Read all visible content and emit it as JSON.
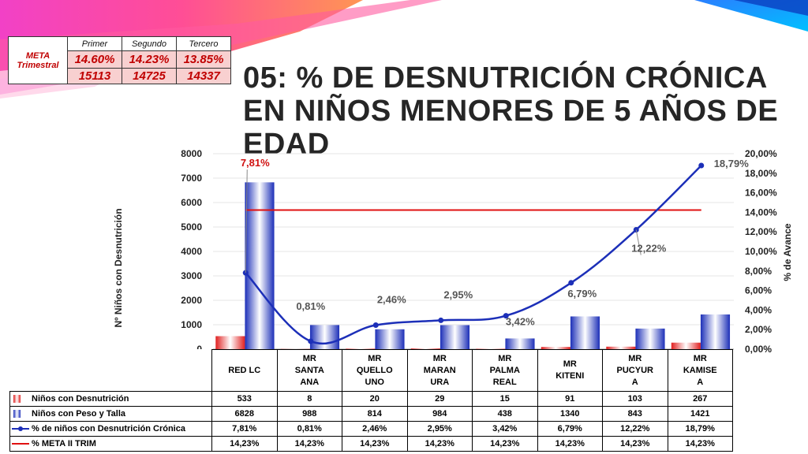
{
  "meta": {
    "label": "META\nTrimestral",
    "headers": [
      "Primer",
      "Segundo",
      "Tercero"
    ],
    "percentages": [
      "14.60%",
      "14.23%",
      "13.85%"
    ],
    "counts": [
      "15113",
      "14725",
      "14337"
    ]
  },
  "title": "05: % DE DESNUTRICIÓN CRÓNICA EN NIÑOS MENORES DE 5 AÑOS DE EDAD",
  "colors": {
    "red": "#e02020",
    "blue": "#1c2fb8",
    "meta": "#e01010",
    "title": "#262626"
  },
  "chart_data": {
    "type": "bar",
    "categories": [
      "RED LC",
      "MR\nSANTA\nANA",
      "MR\nQUELLO\nUNO",
      "MR\nMARAN\nURA",
      "MR\nPALMA\nREAL",
      "MR\nKITENI",
      "MR\nPUCYUR\nA",
      "MR\nKAMISE\nA"
    ],
    "ylabel": "Nº Niños con Desnutrición",
    "y2label": "% de Avance",
    "ylim": [
      0,
      8000
    ],
    "yticks": [
      "0",
      "1000",
      "2000",
      "3000",
      "4000",
      "5000",
      "6000",
      "7000",
      "8000"
    ],
    "y2lim": [
      0,
      20
    ],
    "y2ticks": [
      "0,00%",
      "2,00%",
      "4,00%",
      "6,00%",
      "8,00%",
      "10,00%",
      "12,00%",
      "14,00%",
      "16,00%",
      "18,00%",
      "20,00%"
    ],
    "series": [
      {
        "name": "Niños con Desnutrición",
        "kind": "bar",
        "values": [
          533,
          8,
          20,
          29,
          15,
          91,
          103,
          267
        ],
        "labels": [
          "533",
          "8",
          "20",
          "29",
          "15",
          "91",
          "103",
          "267"
        ]
      },
      {
        "name": "Niños con Peso y Talla",
        "kind": "bar",
        "values": [
          6828,
          988,
          814,
          984,
          438,
          1340,
          843,
          1421
        ],
        "labels": [
          "6828",
          "988",
          "814",
          "984",
          "438",
          "1340",
          "843",
          "1421"
        ]
      },
      {
        "name": "% de niños con Desnutrición Crónica",
        "kind": "line",
        "axis": "right",
        "values": [
          7.81,
          0.81,
          2.46,
          2.95,
          3.42,
          6.79,
          12.22,
          18.79
        ],
        "labels": [
          "7,81%",
          "0,81%",
          "2,46%",
          "2,95%",
          "3,42%",
          "6,79%",
          "12,22%",
          "18,79%"
        ]
      },
      {
        "name": "% META II TRIM",
        "kind": "line",
        "axis": "right",
        "values": [
          14.23,
          14.23,
          14.23,
          14.23,
          14.23,
          14.23,
          14.23,
          14.23
        ],
        "labels": [
          "14,23%",
          "14,23%",
          "14,23%",
          "14,23%",
          "14,23%",
          "14,23%",
          "14,23%",
          "14,23%"
        ]
      }
    ],
    "legend": "table-below"
  }
}
